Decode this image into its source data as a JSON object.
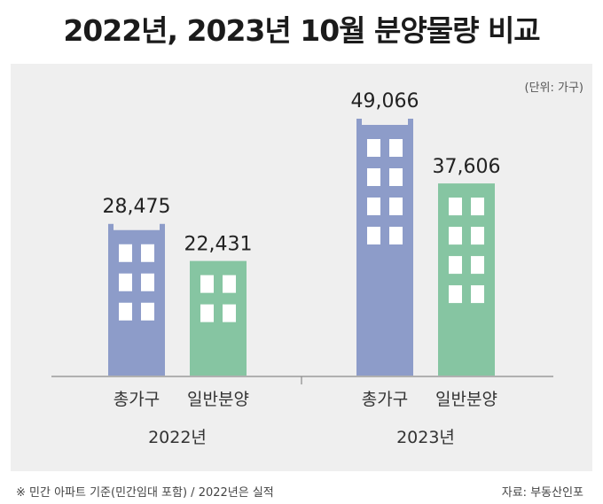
{
  "title": "2022년, 2023년 10월 분양물량 비교",
  "unit_note": "(단위: 가구)",
  "footnote": "※ 민간 아파트 기준(민간임대 포함) / 2022년은 실적",
  "source": "자료: 부동산인포",
  "chart_data": {
    "type": "bar",
    "title": "2022년, 2023년 10월 분양물량 비교",
    "groups": [
      "2022년",
      "2023년"
    ],
    "categories": [
      "총가구",
      "일반분양"
    ],
    "series": [
      {
        "values": [
          28475,
          49066
        ]
      },
      {
        "values": [
          22431,
          37606
        ]
      }
    ],
    "value_labels": [
      [
        "28,475",
        "22,431"
      ],
      [
        "49,066",
        "37,606"
      ]
    ],
    "colors": {
      "total": "#8d9cc9",
      "general": "#86c5a2"
    },
    "unit": "가구"
  }
}
